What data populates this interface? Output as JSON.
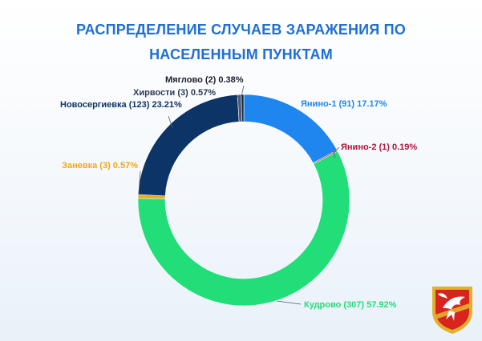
{
  "title": {
    "line1": "РАСПРЕДЕЛЕНИЕ СЛУЧАЕВ ЗАРАЖЕНИЯ ПО",
    "line2": "НАСЕЛЕННЫМ ПУНКТАМ"
  },
  "chart_data": {
    "type": "pie",
    "donut": true,
    "slices": [
      {
        "name": "Янино-1",
        "count": 91,
        "percent": 17.17,
        "label": "Янино-1 (91) 17.17%",
        "color": "#1f86f0",
        "label_color": "#1f86f0"
      },
      {
        "name": "Янино-2",
        "count": 1,
        "percent": 0.19,
        "label": "Янино-2 (1) 0.19%",
        "color": "#b0153a",
        "label_color": "#b0153a"
      },
      {
        "name": "Кудрово",
        "count": 307,
        "percent": 57.92,
        "label": "Кудрово (307) 57.92%",
        "color": "#22de78",
        "label_color": "#22de78"
      },
      {
        "name": "Заневка",
        "count": 3,
        "percent": 0.57,
        "label": "Заневка (3) 0.57%",
        "color": "#f2a814",
        "label_color": "#f2a814"
      },
      {
        "name": "Новосергиевка",
        "count": 123,
        "percent": 23.21,
        "label": "Новосергиевка (123) 23.21%",
        "color": "#0d3466",
        "label_color": "#0d3466"
      },
      {
        "name": "Хирвости",
        "count": 3,
        "percent": 0.57,
        "label": "Хирвости (3) 0.57%",
        "color": "#4a5a78",
        "label_color": "#2d3a52"
      },
      {
        "name": "Мяглово",
        "count": 2,
        "percent": 0.38,
        "label": "Мяглово (2) 0.38%",
        "color": "#1b1e2c",
        "label_color": "#1b1e2c"
      }
    ]
  },
  "emblem": {
    "icon": "coat-of-arms-icon",
    "colors": {
      "field": "#d9231f",
      "border": "#e0b22a",
      "bird": "#ffffff"
    }
  }
}
